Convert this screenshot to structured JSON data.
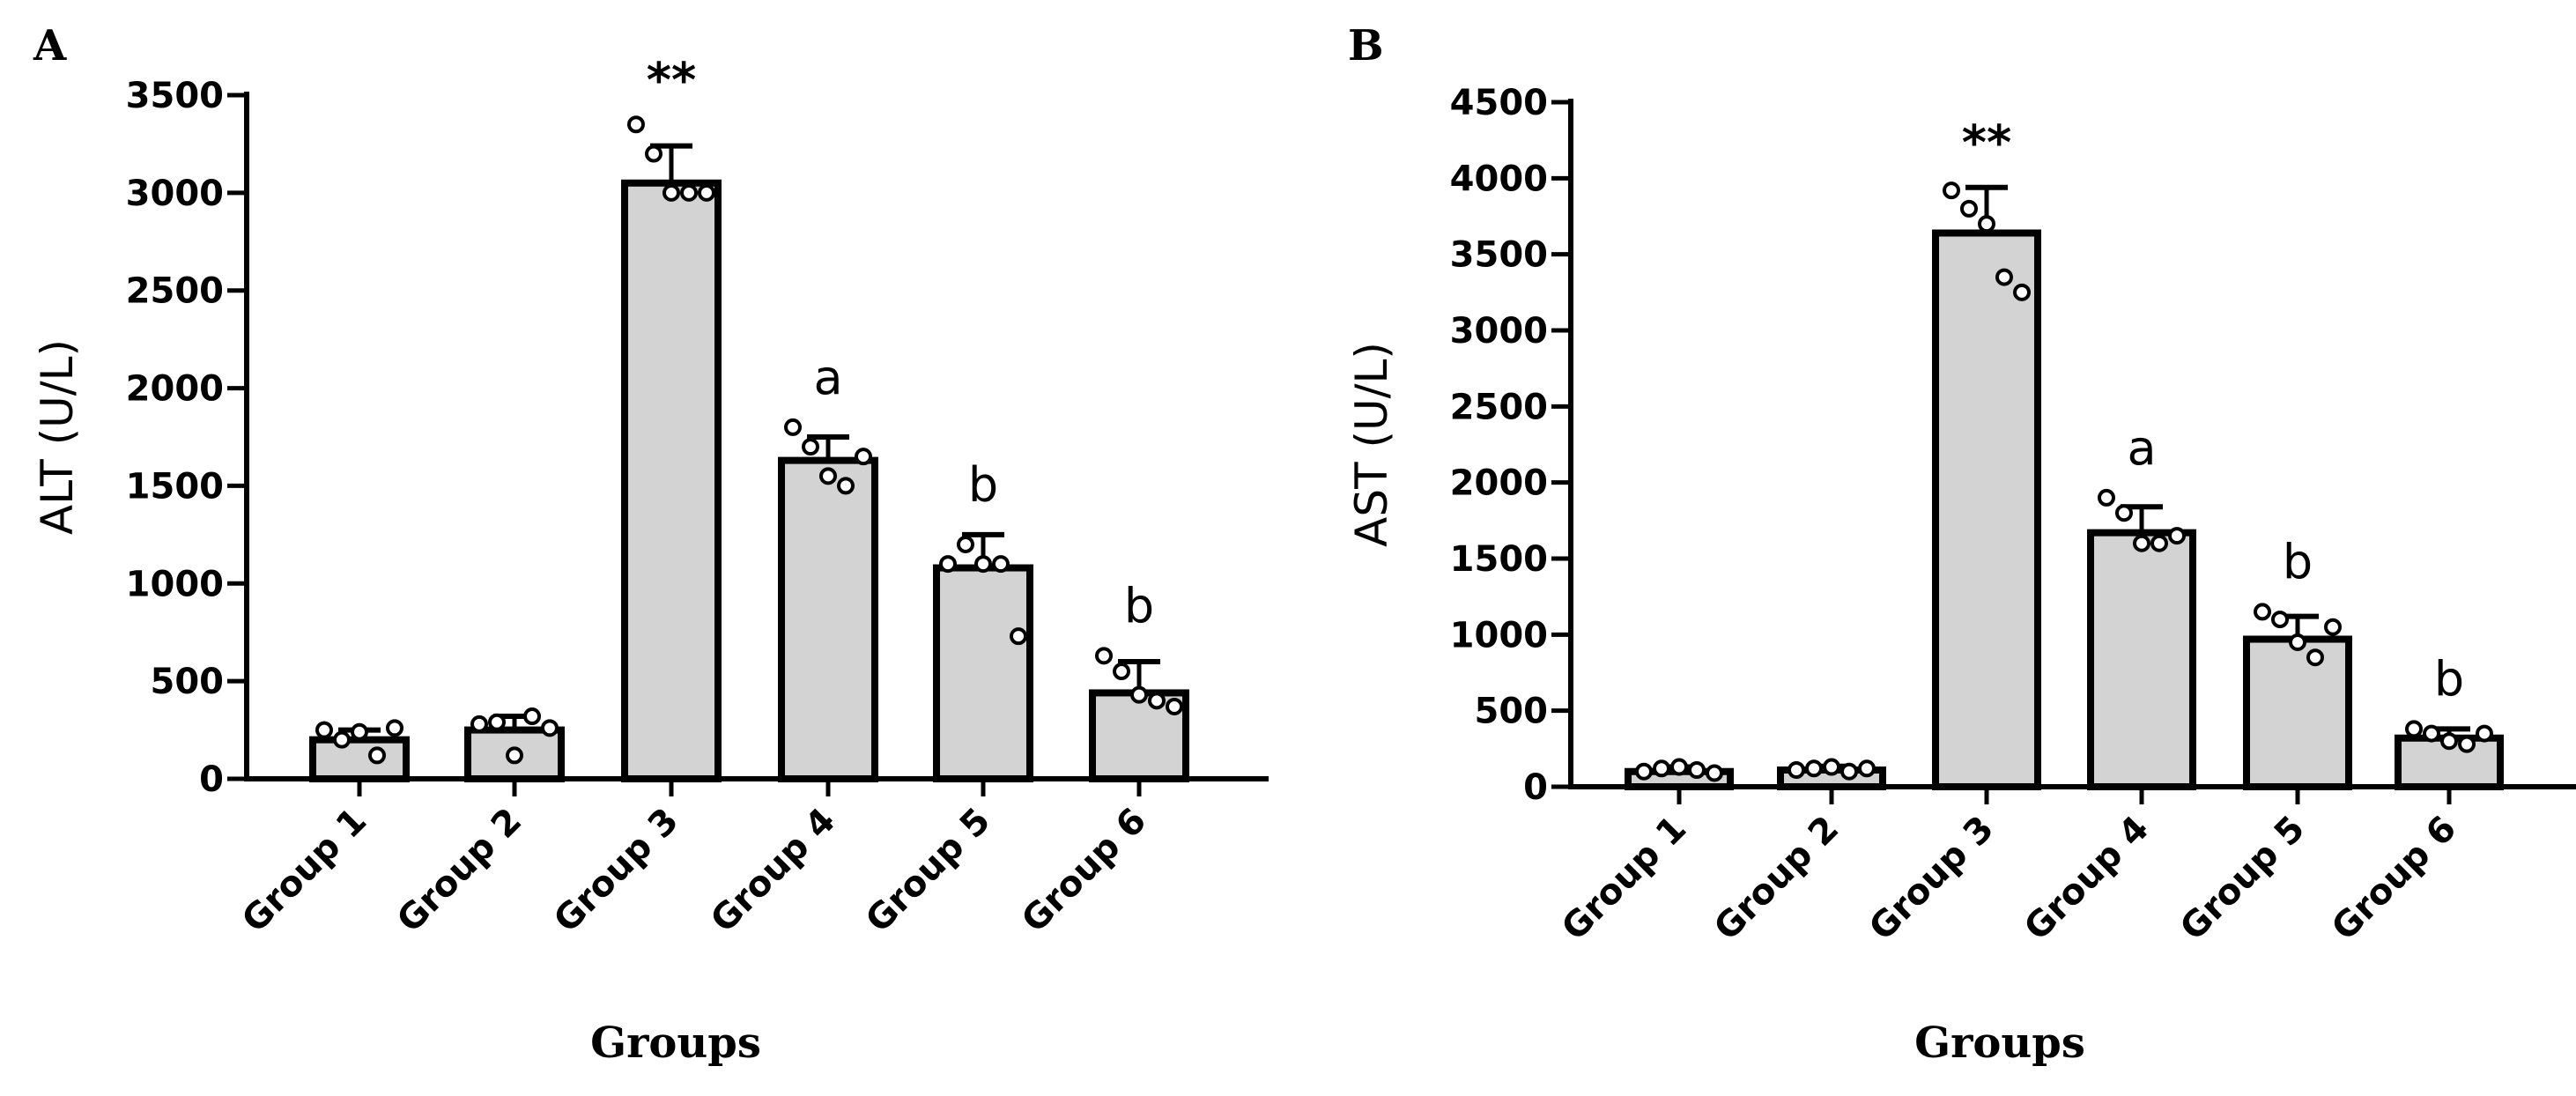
{
  "chart_data": [
    {
      "panel": "A",
      "type": "bar",
      "xlabel": "Groups",
      "ylabel": "ALT (U/L)",
      "ylim": [
        0,
        3500
      ],
      "yticks": [
        0,
        500,
        1000,
        1500,
        2000,
        2500,
        3000,
        3500
      ],
      "categories": [
        "Group 1",
        "Group 2",
        "Group 3",
        "Group 4",
        "Group 5",
        "Group 6"
      ],
      "values": [
        200,
        250,
        3050,
        1630,
        1080,
        440
      ],
      "errors": [
        50,
        70,
        190,
        120,
        170,
        160
      ],
      "points": [
        [
          250,
          200,
          240,
          120,
          260
        ],
        [
          280,
          290,
          120,
          320,
          260
        ],
        [
          3350,
          3200,
          3000,
          3000,
          3000
        ],
        [
          1800,
          1700,
          1550,
          1500,
          1650
        ],
        [
          1100,
          1200,
          1100,
          1100,
          730
        ],
        [
          630,
          550,
          430,
          400,
          370
        ]
      ],
      "annotations": [
        "",
        "",
        "**",
        "a",
        "b",
        "b"
      ],
      "fill_color": "#d3d3d3",
      "edge_color": "#000000"
    },
    {
      "panel": "B",
      "type": "bar",
      "xlabel": "Groups",
      "ylabel": "AST (U/L)",
      "ylim": [
        0,
        4500
      ],
      "yticks": [
        0,
        500,
        1000,
        1500,
        2000,
        2500,
        3000,
        3500,
        4000,
        4500
      ],
      "categories": [
        "Group 1",
        "Group 2",
        "Group 3",
        "Group 4",
        "Group 5",
        "Group 6"
      ],
      "values": [
        100,
        110,
        3640,
        1670,
        970,
        320
      ],
      "errors": [
        30,
        25,
        300,
        170,
        150,
        60
      ],
      "points": [
        [
          100,
          120,
          130,
          110,
          90
        ],
        [
          110,
          120,
          130,
          100,
          120
        ],
        [
          3920,
          3800,
          3700,
          3350,
          3250
        ],
        [
          1900,
          1800,
          1600,
          1600,
          1650
        ],
        [
          1150,
          1100,
          950,
          850,
          1050
        ],
        [
          380,
          350,
          300,
          280,
          350
        ]
      ],
      "annotations": [
        "",
        "",
        "**",
        "a",
        "b",
        "b"
      ],
      "fill_color": "#d3d3d3",
      "edge_color": "#000000"
    }
  ]
}
